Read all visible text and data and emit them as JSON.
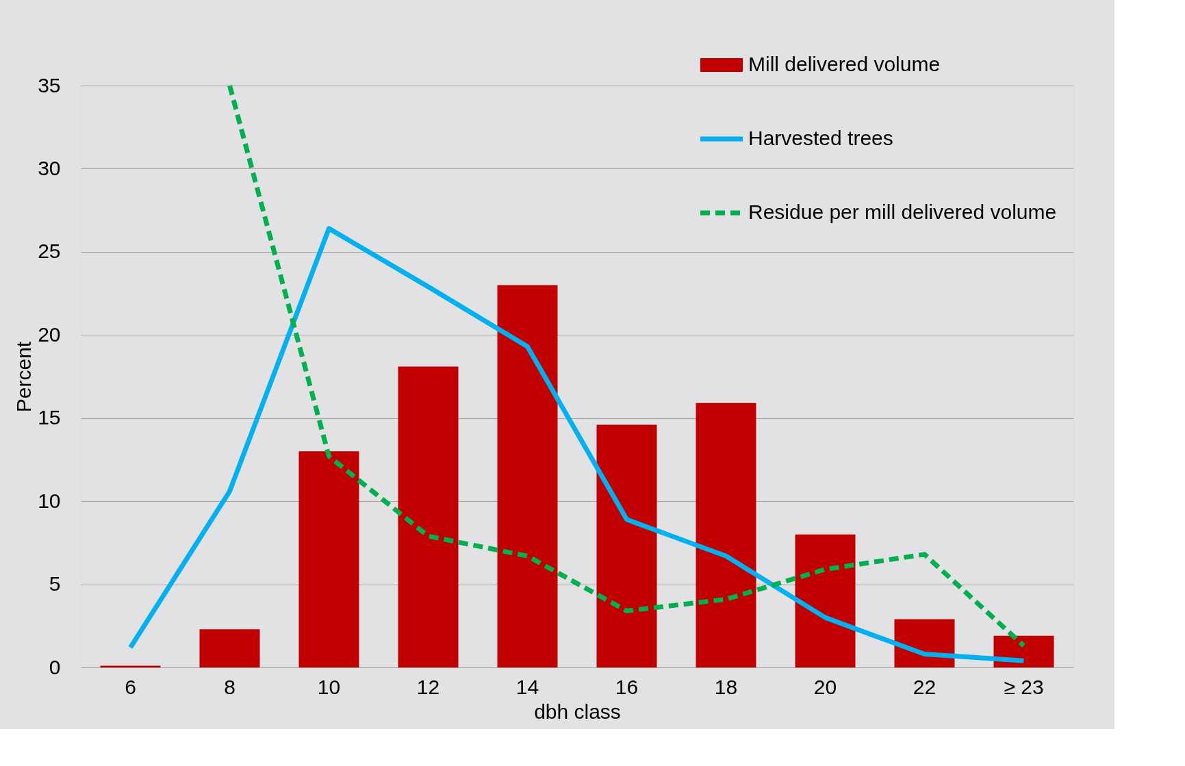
{
  "chart_data": {
    "type": "bar",
    "xlabel": "dbh class",
    "ylabel": "Percent",
    "categories": [
      "6",
      "8",
      "10",
      "12",
      "14",
      "16",
      "18",
      "20",
      "22",
      "≥ 23"
    ],
    "series": [
      {
        "name": "Mill delivered volume",
        "color": "#c00000",
        "values": [
          0.1,
          2.3,
          13.0,
          18.1,
          23.0,
          14.6,
          15.9,
          8.0,
          2.9,
          1.9
        ]
      },
      {
        "name": "Harvested trees",
        "type": "line",
        "color": "#00b0f0",
        "line_style": "solid",
        "values": [
          1.2,
          10.6,
          26.4,
          22.9,
          19.3,
          8.9,
          6.7,
          3.0,
          0.8,
          0.4
        ]
      },
      {
        "name": "Residue per mill delivered volume",
        "type": "line",
        "color": "#00b050",
        "line_style": "dashed",
        "values": [
          null,
          35.0,
          12.7,
          7.9,
          6.7,
          3.4,
          4.1,
          5.9,
          6.8,
          1.3
        ]
      }
    ],
    "ylim": [
      0,
      35
    ],
    "yticks": [
      0,
      5,
      10,
      15,
      20,
      25,
      30,
      35
    ],
    "grid": "y",
    "legend": "top right"
  }
}
